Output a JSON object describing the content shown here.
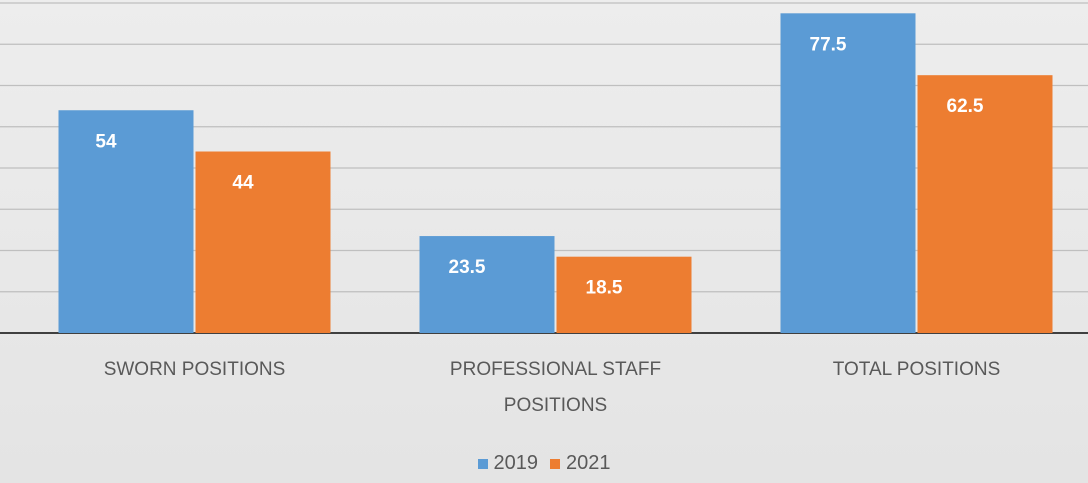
{
  "chart_data": {
    "type": "bar",
    "categories": [
      "SWORN POSITIONS",
      "PROFESSIONAL STAFF POSITIONS",
      "TOTAL POSITIONS"
    ],
    "series": [
      {
        "name": "2019",
        "color": "#5b9bd5",
        "values": [
          54,
          23.5,
          77.5
        ]
      },
      {
        "name": "2021",
        "color": "#ed7d31",
        "values": [
          44,
          18.5,
          62.5
        ]
      }
    ],
    "ylim": [
      0,
      80
    ],
    "yticks": [
      0,
      10,
      20,
      30,
      40,
      50,
      60,
      70,
      80
    ],
    "grid": true
  }
}
